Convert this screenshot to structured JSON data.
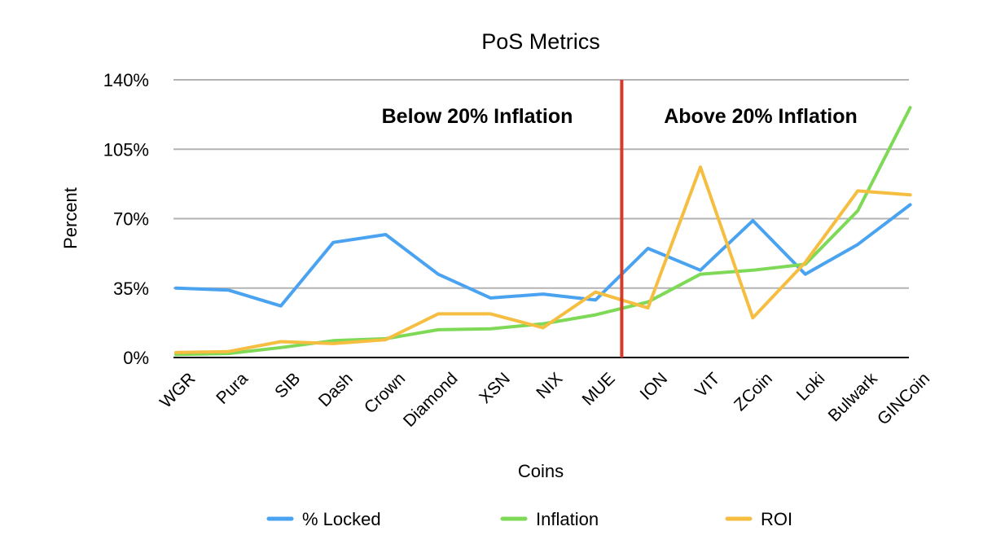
{
  "chart_data": {
    "type": "line",
    "title": "PoS Metrics",
    "xlabel": "Coins",
    "ylabel": "Percent",
    "ylim": [
      0,
      140
    ],
    "yticks": [
      0,
      35,
      70,
      105,
      140
    ],
    "ytick_labels": [
      "0%",
      "35%",
      "70%",
      "105%",
      "140%"
    ],
    "grid": true,
    "legend_position": "bottom",
    "categories": [
      "WGR",
      "Pura",
      "SIB",
      "Dash",
      "Crown",
      "Diamond",
      "XSN",
      "NIX",
      "MUE",
      "ION",
      "VIT",
      "ZCoin",
      "Loki",
      "Bulwark",
      "GINCoin"
    ],
    "series": [
      {
        "name": "% Locked",
        "color": "#4aa3f0",
        "values": [
          35,
          34,
          26,
          58,
          62,
          42,
          30,
          32,
          29,
          55,
          44,
          69,
          42,
          57,
          77
        ]
      },
      {
        "name": "Inflation",
        "color": "#7ed957",
        "values": [
          1.5,
          2,
          5,
          8.5,
          9.5,
          14,
          14.5,
          17,
          21.5,
          28,
          42,
          44,
          47,
          74,
          126
        ]
      },
      {
        "name": "ROI",
        "color": "#f5be41",
        "values": [
          2.5,
          3,
          8,
          7,
          9,
          22,
          22,
          15,
          33,
          25,
          96,
          20,
          48,
          84,
          82
        ]
      }
    ],
    "divider": {
      "after_category": "MUE",
      "color": "#d63a2a"
    },
    "annotations": [
      "Below 20% Inflation",
      "Above 20% Inflation"
    ]
  }
}
